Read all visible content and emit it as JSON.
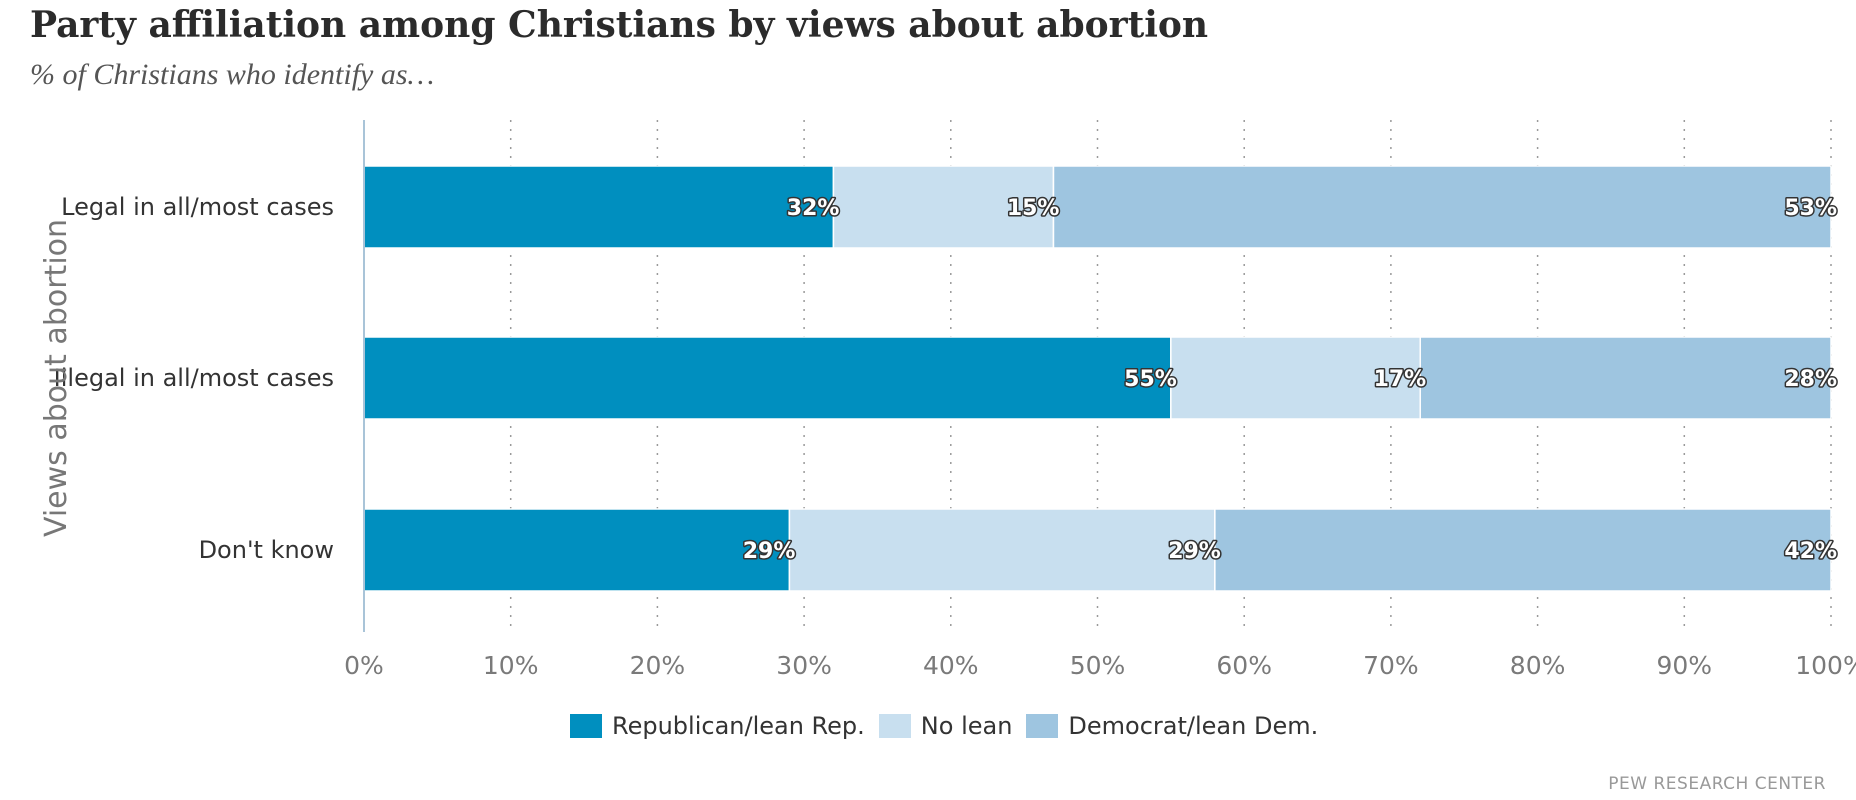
{
  "chart_data": {
    "type": "bar",
    "orientation": "horizontal",
    "stacked": true,
    "title": "Party affiliation among Christians by views about abortion",
    "subtitle": "% of Christians who identify as…",
    "ylabel": "Views about abortion",
    "xlabel": "",
    "xlim": [
      0,
      100
    ],
    "x_ticks": [
      "0%",
      "10%",
      "20%",
      "30%",
      "40%",
      "50%",
      "60%",
      "70%",
      "80%",
      "90%",
      "100%"
    ],
    "grid": "vertical dotted",
    "legend_position": "bottom",
    "categories": [
      "Legal in all/most cases",
      "Illegal in all/most cases",
      "Don't know"
    ],
    "series": [
      {
        "name": "Republican/lean Rep.",
        "color": "#008fbf",
        "values": [
          32,
          55,
          29
        ],
        "labels": [
          "32%",
          "55%",
          "29%"
        ]
      },
      {
        "name": "No lean",
        "color": "#c8dfef",
        "values": [
          15,
          17,
          29
        ],
        "labels": [
          "15%",
          "17%",
          "29%"
        ]
      },
      {
        "name": "Democrat/lean Dem.",
        "color": "#9ec5e0",
        "values": [
          53,
          28,
          42
        ],
        "labels": [
          "53%",
          "28%",
          "42%"
        ]
      }
    ]
  },
  "source": "PEW RESEARCH CENTER"
}
